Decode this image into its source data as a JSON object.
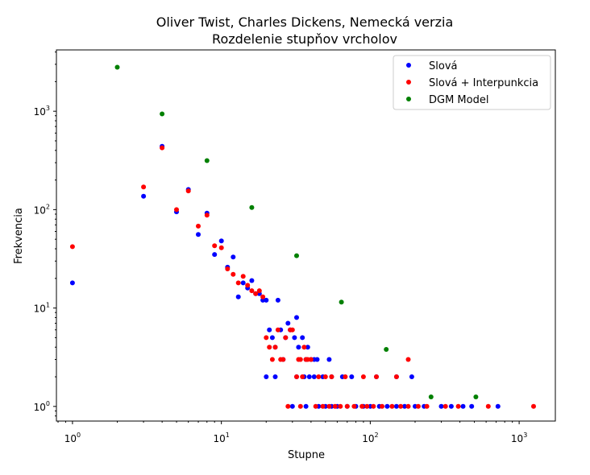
{
  "chart_data": {
    "type": "scatter",
    "title_line1": "Oliver Twist, Charles Dickens, Nemecká verzia",
    "title_line2": "Rozdelenie stupňov vrcholov",
    "xlabel": "Stupne",
    "ylabel": "Frekvencia",
    "x_scale": "log",
    "y_scale": "log",
    "xlim": [
      0.78,
      1750
    ],
    "ylim": [
      0.71,
      4200
    ],
    "x_ticks": [
      {
        "value": 1,
        "base": "10",
        "exp": "0"
      },
      {
        "value": 10,
        "base": "10",
        "exp": "1"
      },
      {
        "value": 100,
        "base": "10",
        "exp": "2"
      },
      {
        "value": 1000,
        "base": "10",
        "exp": "3"
      }
    ],
    "y_ticks": [
      {
        "value": 1,
        "base": "10",
        "exp": "0"
      },
      {
        "value": 10,
        "base": "10",
        "exp": "1"
      },
      {
        "value": 100,
        "base": "10",
        "exp": "2"
      },
      {
        "value": 1000,
        "base": "10",
        "exp": "3"
      }
    ],
    "grid": false,
    "legend_position": "top-right",
    "series": [
      {
        "name": "Slová",
        "color": "#0000ff",
        "points": [
          [
            1,
            18
          ],
          [
            3,
            137
          ],
          [
            4,
            440
          ],
          [
            5,
            95
          ],
          [
            6,
            160
          ],
          [
            7,
            56
          ],
          [
            8,
            92
          ],
          [
            9,
            35
          ],
          [
            10,
            48
          ],
          [
            11,
            26
          ],
          [
            12,
            33
          ],
          [
            13,
            13
          ],
          [
            14,
            18
          ],
          [
            15,
            16
          ],
          [
            16,
            19
          ],
          [
            17,
            14
          ],
          [
            18,
            14
          ],
          [
            19,
            12
          ],
          [
            20,
            12
          ],
          [
            21,
            6
          ],
          [
            22,
            5
          ],
          [
            23,
            4
          ],
          [
            24,
            12
          ],
          [
            25,
            6
          ],
          [
            26,
            3
          ],
          [
            27,
            5
          ],
          [
            28,
            7
          ],
          [
            29,
            6
          ],
          [
            31,
            5
          ],
          [
            32,
            8
          ],
          [
            33,
            4
          ],
          [
            35,
            5
          ],
          [
            37,
            3
          ],
          [
            38,
            4
          ],
          [
            40,
            3
          ],
          [
            42,
            3
          ],
          [
            44,
            3
          ],
          [
            53,
            3
          ],
          [
            20,
            2
          ],
          [
            23,
            2
          ],
          [
            32,
            2
          ],
          [
            36,
            2
          ],
          [
            39,
            2
          ],
          [
            42,
            2
          ],
          [
            48,
            2
          ],
          [
            55,
            2
          ],
          [
            65,
            2
          ],
          [
            75,
            2
          ],
          [
            110,
            2
          ],
          [
            150,
            2
          ],
          [
            190,
            2
          ],
          [
            30,
            1
          ],
          [
            37,
            1
          ],
          [
            45,
            1
          ],
          [
            50,
            1
          ],
          [
            55,
            1
          ],
          [
            60,
            1
          ],
          [
            70,
            1
          ],
          [
            80,
            1
          ],
          [
            90,
            1
          ],
          [
            100,
            1
          ],
          [
            115,
            1
          ],
          [
            130,
            1
          ],
          [
            150,
            1
          ],
          [
            170,
            1
          ],
          [
            200,
            1
          ],
          [
            230,
            1
          ],
          [
            300,
            1
          ],
          [
            350,
            1
          ],
          [
            420,
            1
          ],
          [
            480,
            1
          ],
          [
            720,
            1
          ]
        ]
      },
      {
        "name": "Slová + Interpunkcia",
        "color": "#ff0000",
        "points": [
          [
            1,
            42
          ],
          [
            3,
            170
          ],
          [
            4,
            425
          ],
          [
            5,
            100
          ],
          [
            6,
            155
          ],
          [
            7,
            68
          ],
          [
            8,
            88
          ],
          [
            9,
            43
          ],
          [
            10,
            41
          ],
          [
            11,
            25
          ],
          [
            12,
            22
          ],
          [
            13,
            18
          ],
          [
            14,
            21
          ],
          [
            15,
            17
          ],
          [
            16,
            15
          ],
          [
            17,
            14
          ],
          [
            18,
            15
          ],
          [
            19,
            13
          ],
          [
            20,
            5
          ],
          [
            21,
            4
          ],
          [
            22,
            3
          ],
          [
            23,
            4
          ],
          [
            24,
            6
          ],
          [
            25,
            3
          ],
          [
            26,
            3
          ],
          [
            27,
            5
          ],
          [
            29,
            6
          ],
          [
            30,
            6
          ],
          [
            33,
            3
          ],
          [
            34,
            3
          ],
          [
            36,
            4
          ],
          [
            37,
            3
          ],
          [
            38,
            3
          ],
          [
            40,
            3
          ],
          [
            32,
            2
          ],
          [
            35,
            2
          ],
          [
            45,
            2
          ],
          [
            50,
            2
          ],
          [
            55,
            2
          ],
          [
            68,
            2
          ],
          [
            90,
            2
          ],
          [
            110,
            2
          ],
          [
            150,
            2
          ],
          [
            180,
            3
          ],
          [
            28,
            1
          ],
          [
            34,
            1
          ],
          [
            43,
            1
          ],
          [
            48,
            1
          ],
          [
            53,
            1
          ],
          [
            58,
            1
          ],
          [
            63,
            1
          ],
          [
            70,
            1
          ],
          [
            78,
            1
          ],
          [
            88,
            1
          ],
          [
            95,
            1
          ],
          [
            105,
            1
          ],
          [
            120,
            1
          ],
          [
            140,
            1
          ],
          [
            160,
            1
          ],
          [
            180,
            1
          ],
          [
            210,
            1
          ],
          [
            240,
            1
          ],
          [
            320,
            1
          ],
          [
            390,
            1
          ],
          [
            620,
            1
          ],
          [
            1250,
            1
          ]
        ]
      },
      {
        "name": "DGM Model",
        "color": "#008000",
        "points": [
          [
            2,
            2800
          ],
          [
            4,
            940
          ],
          [
            8,
            315
          ],
          [
            16,
            105
          ],
          [
            32,
            34
          ],
          [
            64,
            11.5
          ],
          [
            128,
            3.8
          ],
          [
            256,
            1.25
          ],
          [
            512,
            1.25
          ]
        ]
      }
    ]
  }
}
